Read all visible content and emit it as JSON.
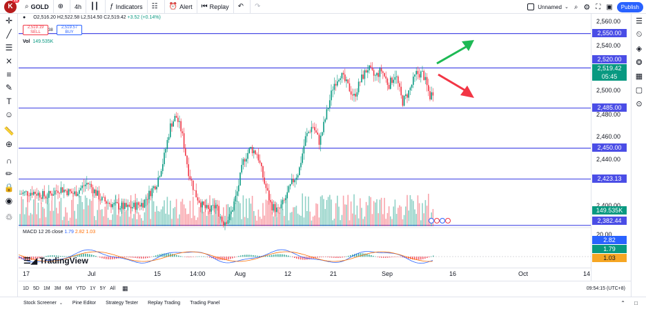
{
  "topbar": {
    "logo_letter": "K",
    "logo_badge": "11",
    "symbol": "GOLD",
    "interval": "4h",
    "indicators": "Indicators",
    "alert": "Alert",
    "replay": "Replay",
    "layout_name": "Unnamed",
    "publish": "Publish"
  },
  "legend": {
    "ohlc_open": "O2,516.20",
    "ohlc_high": "H2,522.58",
    "ohlc_low": "L2,514.50",
    "ohlc_close": "C2,519.42",
    "ohlc_change": "+3.52 (+0.14%)",
    "sell_price": "2,519.19",
    "sell_label": "SELL",
    "buy_price": "2,519.57",
    "buy_label": "BUY",
    "spread": "38",
    "vol_label": "Vol",
    "vol_value": "149.535K",
    "macd_label": "MACD 12 26 close",
    "macd_v1": "1.79",
    "macd_v2": "2.82",
    "macd_v3": "1.03",
    "brand": "TradingView"
  },
  "price_axis": {
    "labels": [
      "2,560.00",
      "2,540.00",
      "2,500.00",
      "2,480.00",
      "2,460.00",
      "2,440.00",
      "2,400.00",
      "20.00"
    ],
    "boxes": [
      {
        "text": "2,550.00",
        "color": "#4a4de6"
      },
      {
        "text": "2,520.00",
        "color": "#4a4de6"
      },
      {
        "text": "2,519.42",
        "color": "#089981"
      },
      {
        "text": "05:45",
        "color": "#089981"
      },
      {
        "text": "2,485.00",
        "color": "#4a4de6"
      },
      {
        "text": "2,450.00",
        "color": "#4a4de6"
      },
      {
        "text": "2,423.13",
        "color": "#4a4de6"
      },
      {
        "text": "149.535K",
        "color": "#089981"
      },
      {
        "text": "2,382.44",
        "color": "#4a4de6"
      },
      {
        "text": "2.82",
        "color": "#2962ff"
      },
      {
        "text": "1.79",
        "color": "#089981"
      },
      {
        "text": "1.03",
        "color": "#f6a623"
      }
    ]
  },
  "time_axis": {
    "labels": [
      "17",
      "Jul",
      "15",
      "14:00",
      "Aug",
      "12",
      "21",
      "Sep",
      "16",
      "Oct",
      "14"
    ]
  },
  "range_bar": {
    "ranges": [
      "1D",
      "5D",
      "1M",
      "3M",
      "6M",
      "YTD",
      "1Y",
      "5Y",
      "All"
    ],
    "clock": "09:54:15 (UTC+8)"
  },
  "bottom_tabs": [
    "Stock Screener",
    "Pine Editor",
    "Strategy Tester",
    "Replay Trading",
    "Trading Panel"
  ],
  "horizontal_levels": [
    2550.0,
    2520.0,
    2485.0,
    2450.0,
    2423.13
  ],
  "colors": {
    "level_line": "#4a4de6",
    "up": "#089981",
    "down": "#f23645",
    "arrow_up": "#1db954",
    "arrow_down": "#f23645"
  }
}
